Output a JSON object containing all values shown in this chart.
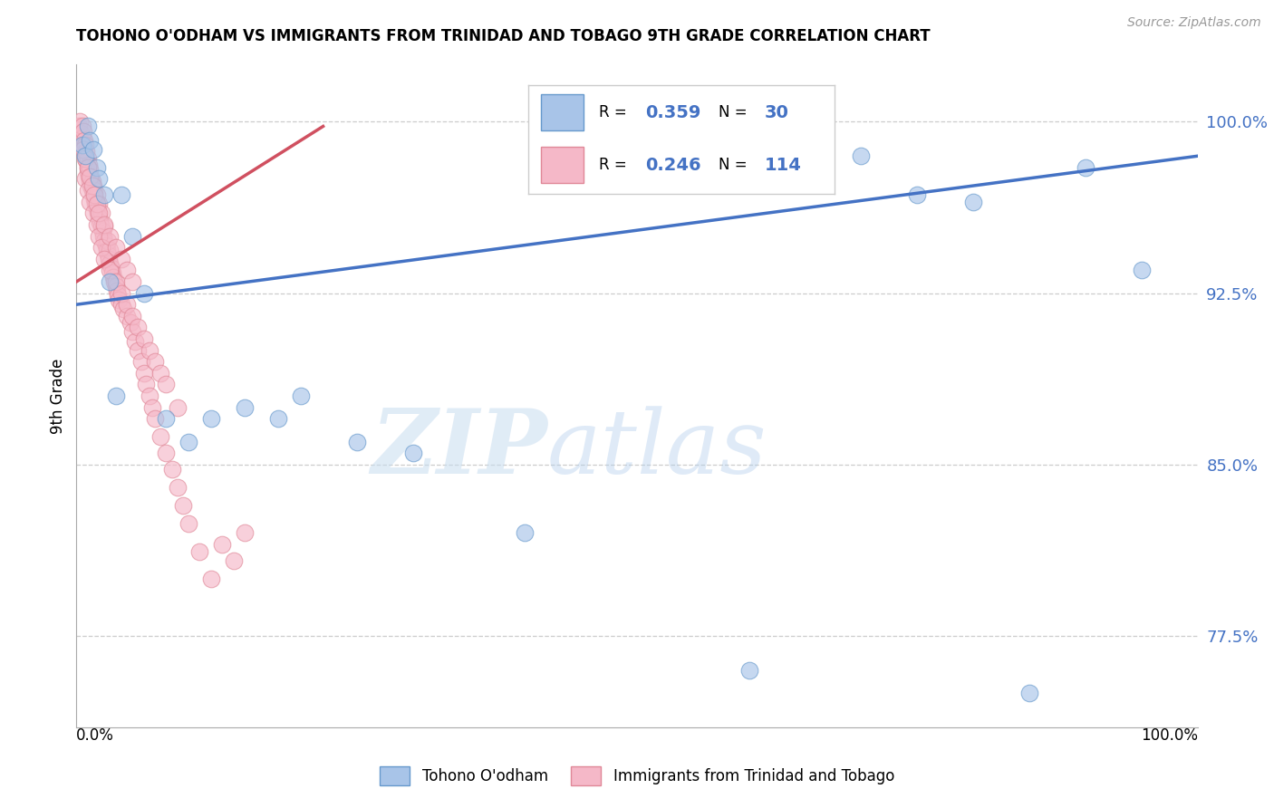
{
  "title": "TOHONO O'ODHAM VS IMMIGRANTS FROM TRINIDAD AND TOBAGO 9TH GRADE CORRELATION CHART",
  "source": "Source: ZipAtlas.com",
  "ylabel": "9th Grade",
  "ytick_labels": [
    "77.5%",
    "85.0%",
    "92.5%",
    "100.0%"
  ],
  "ytick_values": [
    0.775,
    0.85,
    0.925,
    1.0
  ],
  "xlim": [
    0.0,
    1.0
  ],
  "ylim": [
    0.735,
    1.025
  ],
  "R_blue": 0.359,
  "N_blue": 30,
  "R_pink": 0.246,
  "N_pink": 114,
  "blue_color": "#a8c4e8",
  "pink_color": "#f5b8c8",
  "blue_edge_color": "#6699cc",
  "pink_edge_color": "#e08898",
  "blue_line_color": "#4472c4",
  "pink_line_color": "#d05060",
  "legend_label_blue": "Tohono O'odham",
  "legend_label_pink": "Immigrants from Trinidad and Tobago",
  "watermark_zip": "ZIP",
  "watermark_atlas": "atlas",
  "blue_scatter_x": [
    0.005,
    0.008,
    0.01,
    0.012,
    0.015,
    0.018,
    0.02,
    0.025,
    0.03,
    0.035,
    0.04,
    0.05,
    0.06,
    0.08,
    0.1,
    0.12,
    0.15,
    0.18,
    0.2,
    0.25,
    0.3,
    0.4,
    0.5,
    0.6,
    0.7,
    0.75,
    0.8,
    0.85,
    0.9,
    0.95
  ],
  "blue_scatter_y": [
    0.99,
    0.985,
    0.998,
    0.992,
    0.988,
    0.98,
    0.975,
    0.968,
    0.93,
    0.88,
    0.968,
    0.95,
    0.925,
    0.87,
    0.86,
    0.87,
    0.875,
    0.87,
    0.88,
    0.86,
    0.855,
    0.82,
    0.975,
    0.76,
    0.985,
    0.968,
    0.965,
    0.75,
    0.98,
    0.935
  ],
  "pink_scatter_x": [
    0.002,
    0.003,
    0.004,
    0.005,
    0.005,
    0.006,
    0.006,
    0.007,
    0.007,
    0.008,
    0.008,
    0.009,
    0.009,
    0.01,
    0.01,
    0.01,
    0.011,
    0.011,
    0.012,
    0.012,
    0.013,
    0.013,
    0.014,
    0.014,
    0.015,
    0.015,
    0.016,
    0.016,
    0.017,
    0.018,
    0.018,
    0.019,
    0.02,
    0.02,
    0.021,
    0.022,
    0.022,
    0.023,
    0.024,
    0.025,
    0.025,
    0.026,
    0.027,
    0.028,
    0.028,
    0.029,
    0.03,
    0.03,
    0.031,
    0.032,
    0.033,
    0.034,
    0.035,
    0.036,
    0.037,
    0.038,
    0.04,
    0.042,
    0.045,
    0.048,
    0.05,
    0.052,
    0.055,
    0.058,
    0.06,
    0.062,
    0.065,
    0.068,
    0.07,
    0.075,
    0.08,
    0.085,
    0.09,
    0.095,
    0.1,
    0.11,
    0.12,
    0.13,
    0.14,
    0.15,
    0.008,
    0.01,
    0.012,
    0.015,
    0.018,
    0.02,
    0.022,
    0.025,
    0.03,
    0.035,
    0.04,
    0.045,
    0.05,
    0.055,
    0.06,
    0.065,
    0.07,
    0.075,
    0.08,
    0.09,
    0.006,
    0.008,
    0.01,
    0.012,
    0.014,
    0.016,
    0.018,
    0.02,
    0.025,
    0.03,
    0.035,
    0.04,
    0.045,
    0.05
  ],
  "pink_scatter_y": [
    0.998,
    1.0,
    0.995,
    0.993,
    0.998,
    0.99,
    0.996,
    0.988,
    0.992,
    0.985,
    0.99,
    0.983,
    0.987,
    0.98,
    0.984,
    0.978,
    0.976,
    0.981,
    0.974,
    0.979,
    0.972,
    0.976,
    0.97,
    0.974,
    0.968,
    0.972,
    0.966,
    0.97,
    0.964,
    0.962,
    0.968,
    0.96,
    0.958,
    0.964,
    0.956,
    0.954,
    0.96,
    0.952,
    0.95,
    0.948,
    0.954,
    0.946,
    0.944,
    0.942,
    0.948,
    0.94,
    0.938,
    0.944,
    0.936,
    0.934,
    0.932,
    0.93,
    0.928,
    0.926,
    0.924,
    0.922,
    0.92,
    0.918,
    0.915,
    0.912,
    0.908,
    0.904,
    0.9,
    0.895,
    0.89,
    0.885,
    0.88,
    0.875,
    0.87,
    0.862,
    0.855,
    0.848,
    0.84,
    0.832,
    0.824,
    0.812,
    0.8,
    0.815,
    0.808,
    0.82,
    0.975,
    0.97,
    0.965,
    0.96,
    0.955,
    0.95,
    0.945,
    0.94,
    0.935,
    0.93,
    0.925,
    0.92,
    0.915,
    0.91,
    0.905,
    0.9,
    0.895,
    0.89,
    0.885,
    0.875,
    0.988,
    0.984,
    0.98,
    0.976,
    0.972,
    0.968,
    0.964,
    0.96,
    0.955,
    0.95,
    0.945,
    0.94,
    0.935,
    0.93
  ],
  "blue_line_x": [
    0.0,
    1.0
  ],
  "blue_line_y": [
    0.92,
    0.985
  ],
  "pink_line_x": [
    0.0,
    0.22
  ],
  "pink_line_y": [
    0.93,
    0.998
  ]
}
